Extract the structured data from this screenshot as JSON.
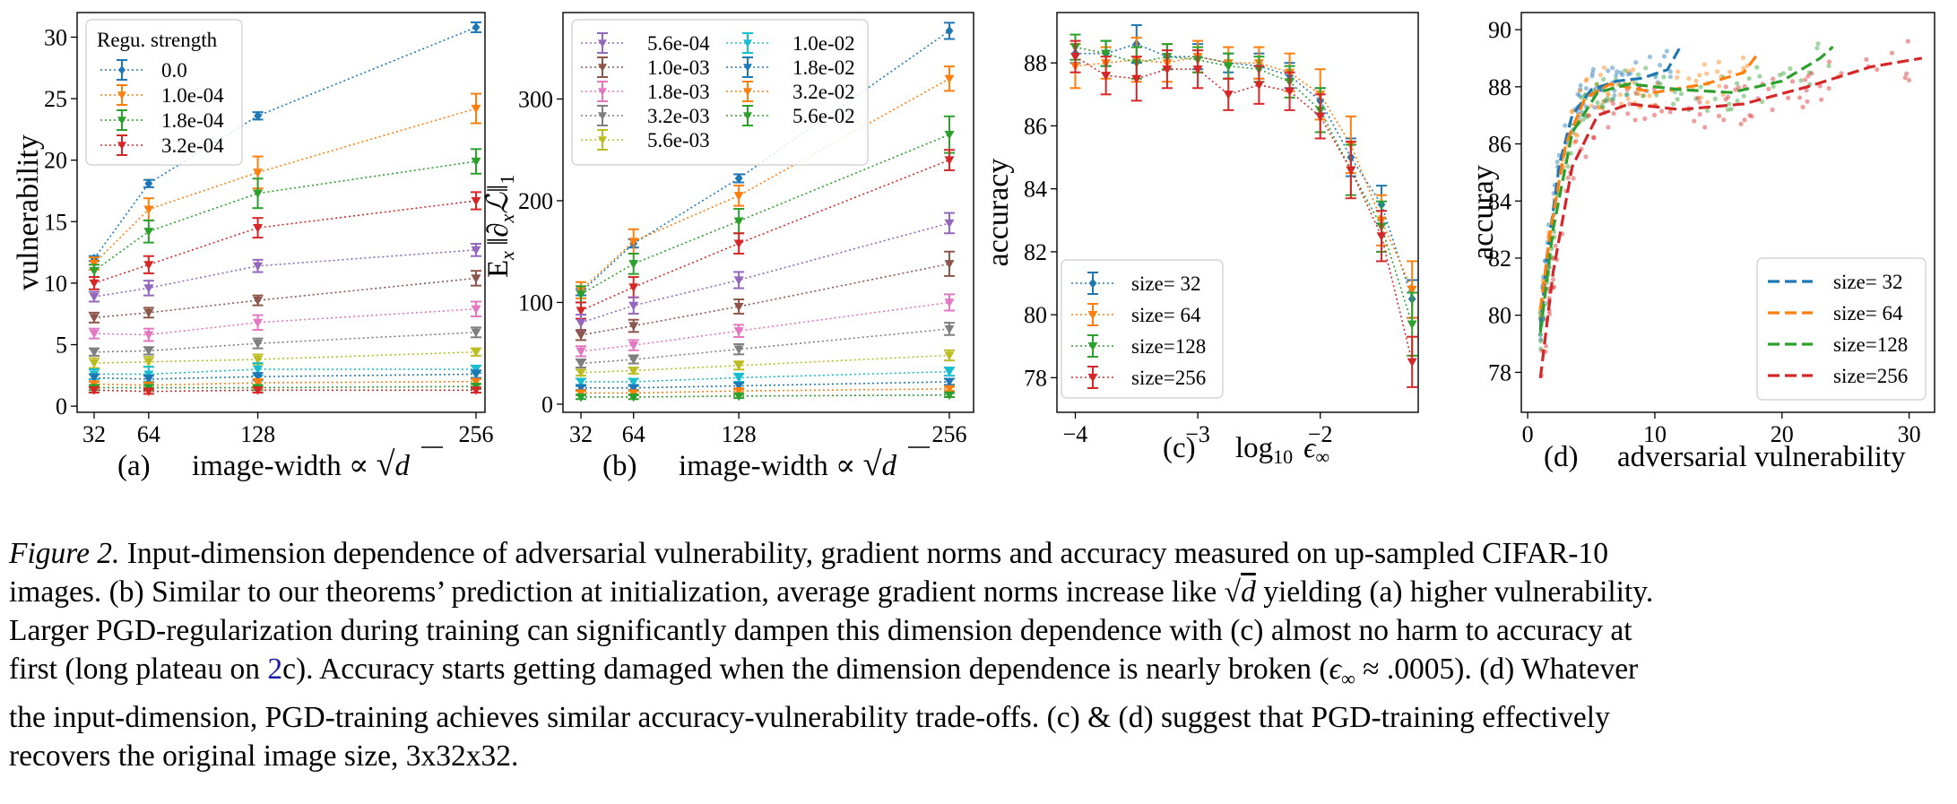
{
  "figure": {
    "colors": {
      "blue": "#1f77b4",
      "orange": "#ff7f0e",
      "green": "#2ca02c",
      "red": "#d62728",
      "purple": "#9467bd",
      "brown": "#8c564b",
      "pink": "#e377c2",
      "gray": "#7f7f7f",
      "olive": "#bcbd22",
      "cyan": "#17becf"
    },
    "panels": [
      {
        "letter": "(a)",
        "xlabel_text": "image-width ∝ ",
        "xlabel_sqrt": "d",
        "ylabel": "vulnerability"
      },
      {
        "letter": "(b)",
        "xlabel_text": "image-width ∝ ",
        "xlabel_sqrt": "d",
        "ylabel_e": "E",
        "ylabel_sub": "x",
        "ylabel_norm": "∂",
        "ylabel_L": "ℒ",
        "ylabel_one": "1"
      },
      {
        "letter": "(c)",
        "xlabel_log": "log",
        "xlabel_base": "10",
        "xlabel_eps": "ϵ",
        "xlabel_inf": "∞",
        "ylabel": "accuracy"
      },
      {
        "letter": "(d)",
        "xlabel": "adversarial vulnerability",
        "ylabel": "accuray"
      }
    ]
  },
  "chart_data": [
    {
      "type": "line",
      "panel": "a",
      "xlabel": "image-width ∝ √d",
      "ylabel": "vulnerability",
      "x": [
        32,
        64,
        128,
        256
      ],
      "xticks": [
        "32",
        "64",
        "128",
        "256"
      ],
      "yticks": [
        0,
        5,
        10,
        15,
        20,
        25,
        30
      ],
      "ylim": [
        -0.5,
        32
      ],
      "legend_title": "Regu. strength",
      "legend_position": "upper-left",
      "errorbars": true,
      "series": [
        {
          "name": "0.0",
          "color": "blue",
          "marker": "diamond",
          "values": [
            12.0,
            18.1,
            23.6,
            30.8
          ],
          "err": [
            0.2,
            0.3,
            0.3,
            0.4
          ]
        },
        {
          "name": "1.0e-04",
          "color": "orange",
          "marker": "tri",
          "values": [
            11.6,
            16.0,
            19.0,
            24.2
          ],
          "err": [
            0.5,
            0.9,
            1.3,
            1.2
          ]
        },
        {
          "name": "1.8e-04",
          "color": "green",
          "marker": "tri",
          "values": [
            11.0,
            14.2,
            17.3,
            19.9
          ],
          "err": [
            0.5,
            0.9,
            1.2,
            1.0
          ]
        },
        {
          "name": "3.2e-04",
          "color": "red",
          "marker": "tri",
          "values": [
            10.0,
            11.5,
            14.5,
            16.7
          ],
          "err": [
            0.5,
            0.7,
            0.8,
            0.7
          ]
        },
        {
          "color": "purple",
          "marker": "tri",
          "values": [
            8.9,
            9.6,
            11.4,
            12.7
          ],
          "err": [
            0.4,
            0.6,
            0.5,
            0.5
          ]
        },
        {
          "color": "brown",
          "marker": "tri",
          "values": [
            7.2,
            7.6,
            8.6,
            10.4
          ],
          "err": [
            0.4,
            0.4,
            0.4,
            0.6
          ]
        },
        {
          "color": "pink",
          "marker": "tri",
          "values": [
            5.9,
            5.8,
            6.8,
            7.9
          ],
          "err": [
            0.4,
            0.5,
            0.6,
            0.6
          ]
        },
        {
          "color": "gray",
          "marker": "tri",
          "values": [
            4.4,
            4.5,
            5.1,
            6.0
          ],
          "err": [
            0.3,
            0.3,
            0.4,
            0.4
          ]
        },
        {
          "color": "olive",
          "marker": "tri",
          "values": [
            3.5,
            3.6,
            3.8,
            4.4
          ],
          "err": [
            0.4,
            0.4,
            0.4,
            0.3
          ]
        },
        {
          "color": "cyan",
          "marker": "tri",
          "values": [
            2.6,
            2.6,
            3.0,
            3.0
          ],
          "err": [
            0.4,
            0.6,
            0.5,
            0.3
          ]
        },
        {
          "color": "blue",
          "marker": "tri",
          "values": [
            2.3,
            2.2,
            2.4,
            2.6
          ],
          "err": [
            0.3,
            0.3,
            0.3,
            0.3
          ]
        },
        {
          "color": "orange",
          "marker": "tri",
          "values": [
            1.8,
            1.7,
            1.9,
            2.0
          ],
          "err": [
            0.2,
            0.2,
            0.3,
            0.2
          ]
        },
        {
          "color": "green",
          "marker": "tri",
          "values": [
            1.5,
            1.5,
            1.5,
            1.6
          ],
          "err": [
            0.2,
            0.2,
            0.2,
            0.2
          ]
        },
        {
          "color": "red",
          "marker": "tri",
          "values": [
            1.3,
            1.2,
            1.3,
            1.3
          ],
          "err": [
            0.2,
            0.2,
            0.2,
            0.2
          ]
        }
      ]
    },
    {
      "type": "line",
      "panel": "b",
      "xlabel": "image-width ∝ √d",
      "ylabel": "E_x ||∂_x L||_1",
      "x": [
        32,
        64,
        128,
        256
      ],
      "xticks": [
        "32",
        "64",
        "128",
        "256"
      ],
      "yticks": [
        0,
        100,
        200,
        300
      ],
      "ylim": [
        -8,
        385
      ],
      "legend_position": "upper-left",
      "legend_columns": 2,
      "errorbars": true,
      "series": [
        {
          "color": "blue",
          "marker": "diamond",
          "values": [
            110,
            158,
            222,
            367
          ],
          "err": [
            3,
            4,
            4,
            8
          ]
        },
        {
          "color": "orange",
          "marker": "tri",
          "values": [
            112,
            160,
            205,
            320
          ],
          "err": [
            8,
            12,
            10,
            12
          ]
        },
        {
          "color": "green",
          "marker": "tri",
          "values": [
            108,
            138,
            180,
            265
          ],
          "err": [
            8,
            10,
            12,
            18
          ]
        },
        {
          "color": "red",
          "marker": "tri",
          "values": [
            92,
            115,
            158,
            240
          ],
          "err": [
            8,
            10,
            10,
            10
          ]
        },
        {
          "name": "5.6e-04",
          "color": "purple",
          "marker": "tri",
          "values": [
            80,
            97,
            122,
            178
          ],
          "err": [
            8,
            8,
            8,
            10
          ]
        },
        {
          "name": "1.0e-03",
          "color": "brown",
          "marker": "tri",
          "values": [
            68,
            77,
            96,
            138
          ],
          "err": [
            5,
            6,
            7,
            12
          ]
        },
        {
          "name": "1.8e-03",
          "color": "pink",
          "marker": "tri",
          "values": [
            52,
            58,
            72,
            100
          ],
          "err": [
            5,
            5,
            6,
            8
          ]
        },
        {
          "name": "3.2e-03",
          "color": "gray",
          "marker": "tri",
          "values": [
            40,
            44,
            54,
            74
          ],
          "err": [
            4,
            4,
            5,
            6
          ]
        },
        {
          "name": "5.6e-03",
          "color": "olive",
          "marker": "tri",
          "values": [
            31,
            33,
            38,
            48
          ],
          "err": [
            3,
            3,
            4,
            5
          ]
        },
        {
          "name": "1.0e-02",
          "color": "cyan",
          "marker": "tri",
          "values": [
            22,
            22,
            26,
            32
          ],
          "err": [
            3,
            3,
            4,
            4
          ]
        },
        {
          "name": "1.8e-02",
          "color": "blue",
          "marker": "tri",
          "values": [
            16,
            16,
            18,
            22
          ],
          "err": [
            2,
            2,
            3,
            3
          ]
        },
        {
          "name": "3.2e-02",
          "color": "orange",
          "marker": "tri",
          "values": [
            11,
            11,
            13,
            15
          ],
          "err": [
            2,
            2,
            2,
            2
          ]
        },
        {
          "name": "5.6e-02",
          "color": "green",
          "marker": "tri",
          "values": [
            7,
            7,
            8,
            9
          ],
          "err": [
            2,
            2,
            2,
            2
          ]
        }
      ]
    },
    {
      "type": "line",
      "panel": "c",
      "xlabel": "log10 ϵ∞",
      "ylabel": "accuracy",
      "xticks": [
        -4,
        -3,
        -2
      ],
      "xlim": [
        -4.15,
        -1.2
      ],
      "yticks": [
        78,
        80,
        82,
        84,
        86,
        88
      ],
      "ylim": [
        76.9,
        89.6
      ],
      "legend_position": "lower-left",
      "errorbars": true,
      "x": [
        -4.0,
        -3.75,
        -3.5,
        -3.25,
        -3.0,
        -2.75,
        -2.5,
        -2.25,
        -2.0,
        -1.75,
        -1.5,
        -1.25
      ],
      "series": [
        {
          "name": "size= 32",
          "color": "blue",
          "marker": "diamond",
          "values": [
            88.3,
            88.3,
            88.6,
            88.2,
            88.2,
            88.0,
            87.9,
            87.6,
            86.8,
            85.0,
            83.5,
            80.5
          ],
          "err": [
            0.3,
            0.4,
            0.6,
            0.4,
            0.4,
            0.3,
            0.4,
            0.4,
            0.4,
            0.6,
            0.6,
            0.6
          ]
        },
        {
          "name": "size= 64",
          "color": "orange",
          "marker": "tri",
          "values": [
            87.9,
            88.0,
            88.1,
            88.0,
            88.2,
            88.0,
            88.0,
            87.7,
            87.0,
            85.4,
            83.0,
            80.8
          ],
          "err": [
            0.7,
            0.5,
            0.7,
            0.6,
            0.5,
            0.5,
            0.5,
            0.6,
            0.8,
            0.9,
            0.8,
            0.9
          ]
        },
        {
          "name": "size=128",
          "color": "green",
          "marker": "tri",
          "values": [
            88.5,
            88.3,
            88.0,
            88.2,
            88.1,
            87.9,
            87.8,
            87.4,
            86.5,
            84.6,
            82.8,
            79.7
          ],
          "err": [
            0.4,
            0.4,
            0.5,
            0.4,
            0.4,
            0.4,
            0.4,
            0.5,
            0.7,
            0.8,
            0.8,
            1.0
          ]
        },
        {
          "name": "size=256",
          "color": "red",
          "marker": "tri",
          "values": [
            88.2,
            87.6,
            87.5,
            87.8,
            87.8,
            87.0,
            87.3,
            87.1,
            86.3,
            84.6,
            82.5,
            78.5
          ],
          "err": [
            0.5,
            0.6,
            0.7,
            0.6,
            0.6,
            0.5,
            0.6,
            0.6,
            0.7,
            0.9,
            0.8,
            0.8
          ]
        }
      ]
    },
    {
      "type": "scatter",
      "panel": "d",
      "xlabel": "adversarial vulnerability",
      "ylabel": "accuray",
      "xticks": [
        0,
        10,
        20,
        30
      ],
      "xlim": [
        -0.5,
        32
      ],
      "yticks": [
        78,
        80,
        82,
        84,
        86,
        88,
        90
      ],
      "ylim": [
        76.6,
        90.6
      ],
      "legend_position": "lower-right",
      "series": [
        {
          "name": "size= 32",
          "color": "blue",
          "fit": [
            [
              1.0,
              79.5
            ],
            [
              1.5,
              82.0
            ],
            [
              2.5,
              85.3
            ],
            [
              3.5,
              87.0
            ],
            [
              5.0,
              87.9
            ],
            [
              7.0,
              88.2
            ],
            [
              9.0,
              88.3
            ],
            [
              11.0,
              88.6
            ],
            [
              12.0,
              89.4
            ]
          ]
        },
        {
          "name": "size= 64",
          "color": "orange",
          "fit": [
            [
              1.0,
              80.2
            ],
            [
              1.8,
              83.0
            ],
            [
              3.0,
              86.0
            ],
            [
              4.5,
              87.6
            ],
            [
              6.5,
              88.1
            ],
            [
              10.0,
              87.8
            ],
            [
              14.0,
              88.1
            ],
            [
              17.0,
              88.5
            ],
            [
              18.0,
              89.1
            ]
          ]
        },
        {
          "name": "size=128",
          "color": "green",
          "fit": [
            [
              1.0,
              79.4
            ],
            [
              2.0,
              83.0
            ],
            [
              3.5,
              86.4
            ],
            [
              5.5,
              87.8
            ],
            [
              8.0,
              88.1
            ],
            [
              12.0,
              87.9
            ],
            [
              16.0,
              87.8
            ],
            [
              20.0,
              88.2
            ],
            [
              23.0,
              89.0
            ],
            [
              24.0,
              89.4
            ]
          ]
        },
        {
          "name": "size=256",
          "color": "red",
          "fit": [
            [
              1.0,
              77.8
            ],
            [
              2.0,
              81.5
            ],
            [
              3.5,
              85.2
            ],
            [
              5.5,
              87.0
            ],
            [
              8.0,
              87.4
            ],
            [
              12.0,
              87.2
            ],
            [
              17.0,
              87.4
            ],
            [
              22.0,
              88.0
            ],
            [
              27.0,
              88.7
            ],
            [
              31.0,
              89.0
            ]
          ]
        }
      ]
    }
  ],
  "caption": {
    "label": "Figure 2.",
    "line1_rest": " Input-dimension dependence of adversarial vulnerability, gradient norms and accuracy measured on up-sampled CIFAR-10",
    "line2_a": "images. (b) Similar to our theorems’ prediction at initialization, average gradient norms increase like ",
    "line2_sqrt": "d",
    "line2_b": " yielding (a) higher vulnerability.",
    "line3": "Larger PGD-regularization during training can significantly dampen this dimension dependence with (c) almost no harm to accuracy at",
    "line4_a": "first (long plateau on ",
    "line4_ref": "2",
    "line4_b": "c). Accuracy starts getting damaged when the dimension dependence is nearly broken (",
    "line4_eps": "ϵ",
    "line4_inf": "∞",
    "line4_c": " ≈ .0005). (d) Whatever",
    "line5": "the input-dimension, PGD-training achieves similar accuracy-vulnerability trade-offs. (c) & (d) suggest that PGD-training effectively",
    "line6": "recovers the original image size, 3x32x32."
  }
}
